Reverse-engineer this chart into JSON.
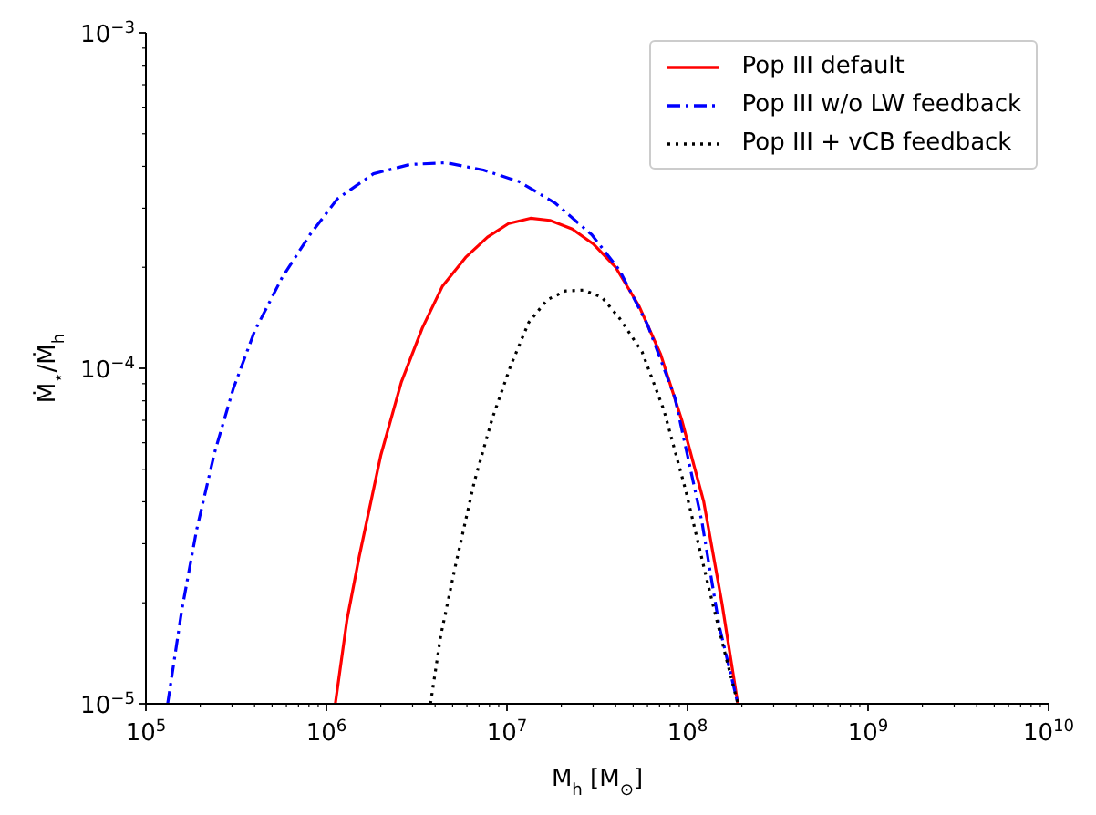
{
  "chart_data": {
    "type": "line",
    "xlabel": "M$_{h}$ [M$_{⊙}$]",
    "ylabel": "Ṁ$_{⋆}$/Ṁ$_{h}$",
    "log": "xy",
    "legend": "top right",
    "xlim": [
      100000,
      10000000000
    ],
    "xticks": [
      {
        "value": 100000,
        "label": "10$^{5}$"
      },
      {
        "value": 200000,
        "label": null
      },
      {
        "value": 300000,
        "label": null
      },
      {
        "value": 400000,
        "label": null
      },
      {
        "value": 500000,
        "label": null
      },
      {
        "value": 600000,
        "label": null
      },
      {
        "value": 700000,
        "label": null
      },
      {
        "value": 800000,
        "label": null
      },
      {
        "value": 900000,
        "label": null
      },
      {
        "value": 1000000,
        "label": "10$^{6}$"
      },
      {
        "value": 2000000,
        "label": null
      },
      {
        "value": 3000000,
        "label": null
      },
      {
        "value": 4000000,
        "label": null
      },
      {
        "value": 5000000,
        "label": null
      },
      {
        "value": 6000000,
        "label": null
      },
      {
        "value": 7000000,
        "label": null
      },
      {
        "value": 8000000,
        "label": null
      },
      {
        "value": 9000000,
        "label": null
      },
      {
        "value": 10000000,
        "label": "10$^{7}$"
      },
      {
        "value": 20000000,
        "label": null
      },
      {
        "value": 30000000,
        "label": null
      },
      {
        "value": 40000000,
        "label": null
      },
      {
        "value": 50000000,
        "label": null
      },
      {
        "value": 60000000,
        "label": null
      },
      {
        "value": 70000000,
        "label": null
      },
      {
        "value": 80000000,
        "label": null
      },
      {
        "value": 90000000,
        "label": null
      },
      {
        "value": 100000000,
        "label": "10$^{8}$"
      },
      {
        "value": 200000000,
        "label": null
      },
      {
        "value": 300000000,
        "label": null
      },
      {
        "value": 400000000,
        "label": null
      },
      {
        "value": 500000000,
        "label": null
      },
      {
        "value": 600000000,
        "label": null
      },
      {
        "value": 700000000,
        "label": null
      },
      {
        "value": 800000000,
        "label": null
      },
      {
        "value": 900000000,
        "label": null
      },
      {
        "value": 1000000000,
        "label": "10$^{9}$"
      },
      {
        "value": 2000000000,
        "label": null
      },
      {
        "value": 3000000000,
        "label": null
      },
      {
        "value": 4000000000,
        "label": null
      },
      {
        "value": 5000000000,
        "label": null
      },
      {
        "value": 6000000000,
        "label": null
      },
      {
        "value": 7000000000,
        "label": null
      },
      {
        "value": 8000000000,
        "label": null
      },
      {
        "value": 9000000000,
        "label": null
      },
      {
        "value": 10000000000,
        "label": "10$^{10}$"
      }
    ],
    "ylim": [
      1e-05,
      0.001
    ],
    "yticks": [
      {
        "value": 1e-05,
        "label": "10$^{−5}$"
      },
      {
        "value": 2e-05,
        "label": null
      },
      {
        "value": 3e-05,
        "label": null
      },
      {
        "value": 4e-05,
        "label": null
      },
      {
        "value": 5e-05,
        "label": null
      },
      {
        "value": 6e-05,
        "label": null
      },
      {
        "value": 7e-05,
        "label": null
      },
      {
        "value": 8e-05,
        "label": null
      },
      {
        "value": 9e-05,
        "label": null
      },
      {
        "value": 0.0001,
        "label": "10$^{−4}$"
      },
      {
        "value": 0.0002,
        "label": null
      },
      {
        "value": 0.0003,
        "label": null
      },
      {
        "value": 0.0004,
        "label": null
      },
      {
        "value": 0.0005,
        "label": null
      },
      {
        "value": 0.0006,
        "label": null
      },
      {
        "value": 0.0007,
        "label": null
      },
      {
        "value": 0.0008,
        "label": null
      },
      {
        "value": 0.0009,
        "label": null
      },
      {
        "value": 0.001,
        "label": "10$^{−3}$"
      }
    ],
    "series": [
      {
        "name": "Pop III default",
        "color": "#ff0000",
        "line_style": "solid",
        "x": [
          1120000,
          1300000,
          1520000,
          2000000,
          2600000,
          3400000,
          4400000,
          5900000,
          7800000,
          10200000,
          13500000,
          17300000,
          23000000,
          30000000,
          40000000,
          54000000,
          71000000,
          93000000,
          123000000,
          155000000,
          190000000
        ],
        "values": [
          1e-05,
          1.78e-05,
          2.75e-05,
          5.5e-05,
          9.1e-05,
          0.000132,
          0.000176,
          0.000214,
          0.000246,
          0.00027,
          0.00028,
          0.000276,
          0.00026,
          0.000235,
          0.0002,
          0.000153,
          0.00011,
          7e-05,
          4e-05,
          2e-05,
          1e-05
        ]
      },
      {
        "name": "Pop III w/o LW feedback",
        "color": "#0000ff",
        "line_style": "dashdot",
        "x": [
          132000,
          158000,
          191000,
          240000,
          305000,
          400000,
          570000,
          810000,
          1150000,
          1820000,
          2900000,
          4600000,
          7400000,
          11700000,
          18600000,
          29500000,
          42000000,
          60000000,
          85000000,
          120000000,
          150000000,
          190000000
        ],
        "values": [
          1e-05,
          1.9e-05,
          3.3e-05,
          5.6e-05,
          8.7e-05,
          0.000129,
          0.000187,
          0.00025,
          0.00032,
          0.00038,
          0.000405,
          0.00041,
          0.00039,
          0.00036,
          0.00031,
          0.00025,
          0.000196,
          0.000135,
          8.2e-05,
          3.5e-05,
          1.7e-05,
          1e-05
        ]
      },
      {
        "name": "Pop III + vCB feedback",
        "color": "#000000",
        "line_style": "dotted",
        "x": [
          3770000,
          4300000,
          5200000,
          6600000,
          8300000,
          10500000,
          13200000,
          16700000,
          21000000,
          26500000,
          33500000,
          42000000,
          56000000,
          74000000,
          98000000,
          129000000,
          162000000,
          190000000
        ],
        "values": [
          1e-05,
          1.6e-05,
          2.6e-05,
          4.6e-05,
          7.1e-05,
          0.000102,
          0.000137,
          0.00016,
          0.00017,
          0.000171,
          0.000163,
          0.000141,
          0.000112,
          7.5e-05,
          4.3e-05,
          2.3e-05,
          1.4e-05,
          1e-05
        ]
      }
    ]
  }
}
